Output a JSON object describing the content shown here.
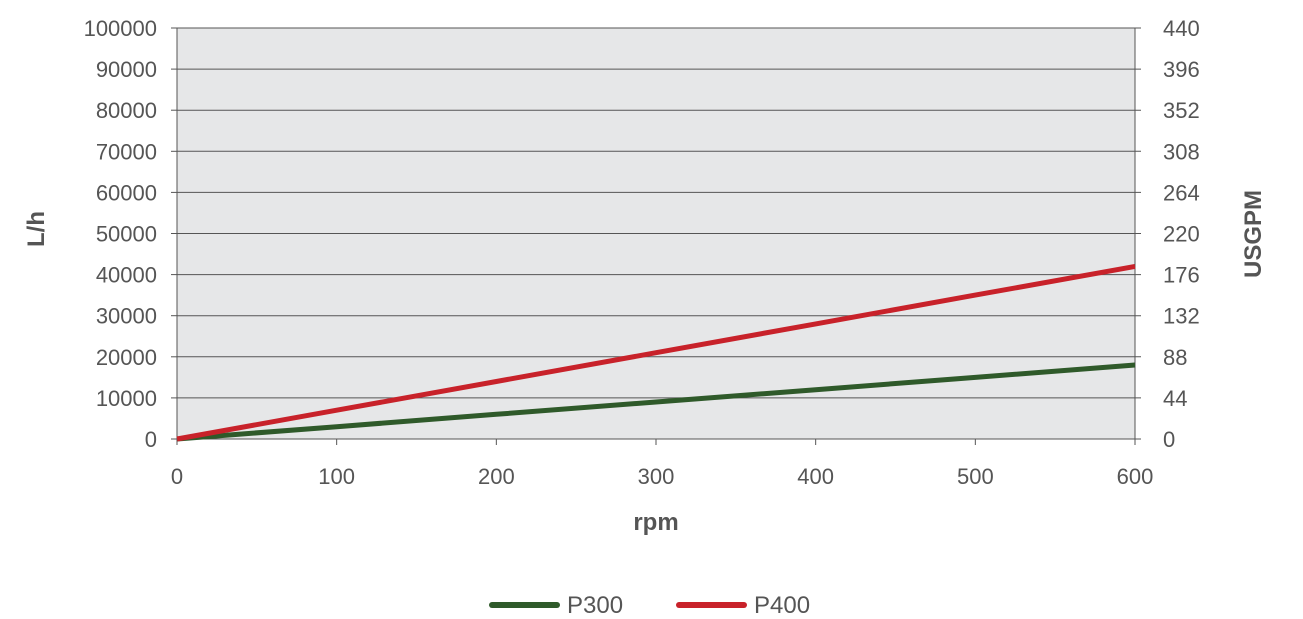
{
  "chart_data": {
    "type": "line",
    "x": [
      0,
      100,
      200,
      300,
      400,
      500,
      600
    ],
    "series": [
      {
        "name": "P300",
        "color": "#2f5a2a",
        "values": [
          0,
          3000,
          6000,
          9000,
          12000,
          15000,
          18000
        ]
      },
      {
        "name": "P400",
        "color": "#c8222a",
        "values": [
          0,
          7000,
          14000,
          21000,
          28000,
          35000,
          42000
        ]
      }
    ],
    "xlabel": "rpm",
    "ylabel": "L/h",
    "y2label": "USGPM",
    "xlim": [
      0,
      600
    ],
    "ylim": [
      0,
      100000
    ],
    "y2lim": [
      0,
      440
    ],
    "xticks": [
      "0",
      "100",
      "200",
      "300",
      "400",
      "500",
      "600"
    ],
    "yticks": [
      "0",
      "10000",
      "20000",
      "30000",
      "40000",
      "50000",
      "60000",
      "70000",
      "80000",
      "90000",
      "100000"
    ],
    "y2ticks": [
      "0",
      "44",
      "88",
      "132",
      "176",
      "220",
      "264",
      "308",
      "352",
      "396",
      "440"
    ],
    "grid": true,
    "legend_position": "bottom-center",
    "plot_background": "#e6e7e8",
    "gridline_color": "#555555"
  }
}
